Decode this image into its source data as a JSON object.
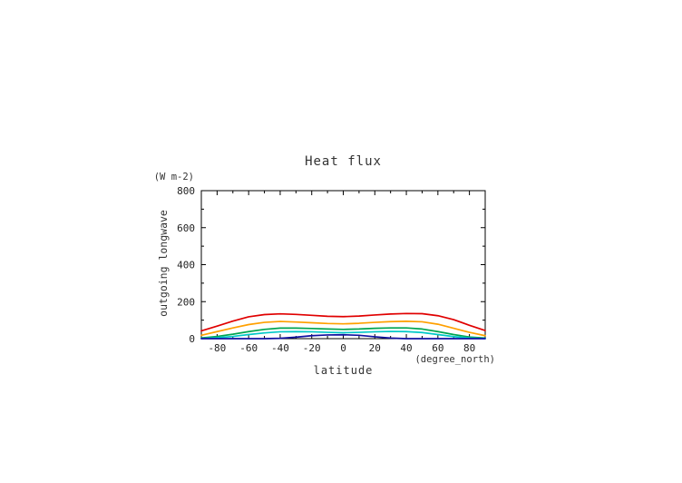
{
  "page": {
    "background": "#ffffff"
  },
  "chart": {
    "title": "Heat flux",
    "y_unit_label": "(W m-2)",
    "ylabel": "outgoing longwave",
    "xlabel": "latitude",
    "x_unit_label": "(degree_north)"
  },
  "chart_data": {
    "type": "line",
    "title": "Heat flux",
    "xlabel": "latitude",
    "ylabel": "outgoing longwave",
    "x_units": "degree_north",
    "y_units": "W m-2",
    "xlim": [
      -90,
      90
    ],
    "ylim": [
      0,
      800
    ],
    "x_ticks": [
      -80,
      -60,
      -40,
      -20,
      0,
      20,
      40,
      60,
      80
    ],
    "y_ticks": [
      0,
      200,
      400,
      600,
      800
    ],
    "grid": false,
    "legend": "none",
    "x": [
      -90,
      -80,
      -70,
      -60,
      -50,
      -40,
      -30,
      -20,
      -10,
      0,
      10,
      20,
      30,
      40,
      50,
      60,
      70,
      80,
      90
    ],
    "series": [
      {
        "name": "red-series",
        "color": "#e00000",
        "values": [
          42,
          68,
          95,
          118,
          130,
          134,
          131,
          126,
          121,
          119,
          122,
          128,
          133,
          136,
          135,
          124,
          103,
          72,
          44
        ]
      },
      {
        "name": "orange-series",
        "color": "#ffa000",
        "values": [
          18,
          38,
          58,
          76,
          88,
          93,
          90,
          86,
          82,
          80,
          83,
          88,
          92,
          94,
          91,
          78,
          56,
          34,
          16
        ]
      },
      {
        "name": "green-series",
        "color": "#00a550",
        "values": [
          4,
          12,
          24,
          38,
          50,
          57,
          57,
          55,
          52,
          50,
          52,
          56,
          58,
          58,
          52,
          38,
          22,
          9,
          3
        ]
      },
      {
        "name": "cyan-series",
        "color": "#00c8c8",
        "values": [
          1,
          5,
          12,
          22,
          31,
          37,
          38,
          37,
          34,
          32,
          34,
          37,
          39,
          38,
          33,
          22,
          11,
          4,
          1
        ]
      },
      {
        "name": "blue-series",
        "color": "#1010a0",
        "values": [
          0,
          0,
          0,
          0,
          0,
          2,
          8,
          16,
          20,
          21,
          18,
          10,
          3,
          0,
          0,
          0,
          0,
          0,
          0
        ]
      }
    ]
  }
}
